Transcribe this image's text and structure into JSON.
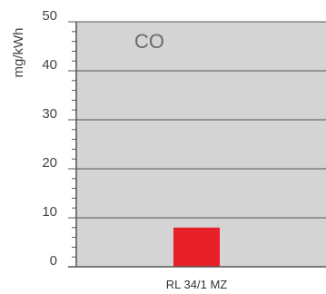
{
  "chart_data": {
    "type": "bar",
    "title": "CO",
    "ylabel": "mg/kWh",
    "xlabel": "",
    "categories": [
      "RL 34/1 MZ"
    ],
    "values": [
      8
    ],
    "ylim": [
      0,
      50
    ],
    "yticks": [
      0,
      10,
      20,
      30,
      40,
      50
    ],
    "minor_ticks_per_major": 5,
    "grid": true,
    "legend": "none",
    "colors": {
      "plot_background": "#d4d4d4",
      "bar": "#e8202a",
      "gridline": "#555555",
      "axis": "#555555"
    }
  }
}
